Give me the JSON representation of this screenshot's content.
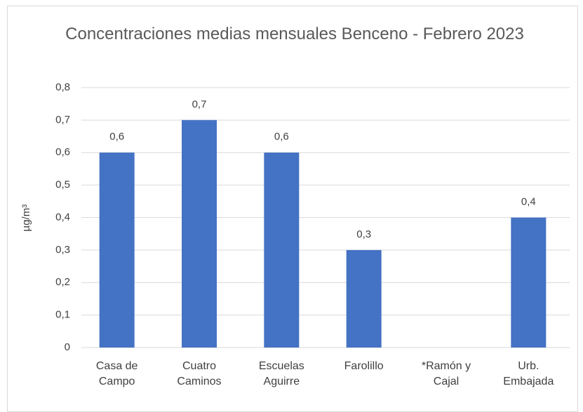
{
  "chart_data": {
    "type": "bar",
    "title": "Concentraciones medias mensuales Benceno - Febrero 2023",
    "y_label": "µg/m³",
    "categories": [
      "Casa de Campo",
      "Cuatro Caminos",
      "Escuelas Aguirre",
      "Farolillo",
      "*Ramón y Cajal",
      "Urb. Embajada"
    ],
    "values": [
      0.6,
      0.7,
      0.6,
      0.3,
      null,
      0.4
    ],
    "value_labels": [
      "0,6",
      "0,7",
      "0,6",
      "0,3",
      null,
      "0,4"
    ],
    "color": "#4472c4",
    "ylim": [
      0,
      0.8
    ],
    "yticks": [
      0,
      {
        "value": 0.1,
        "label": "0,1"
      },
      {
        "value": 0.2,
        "label": "0,2"
      },
      {
        "value": 0.3,
        "label": "0,3"
      },
      {
        "value": 0.4,
        "label": "0,4"
      },
      {
        "value": 0.5,
        "label": "0,5"
      },
      {
        "value": 0.6,
        "label": "0,6"
      },
      {
        "value": 0.7,
        "label": "0,7"
      },
      {
        "value": 0.8,
        "label": "0,8"
      }
    ],
    "grid": true
  }
}
